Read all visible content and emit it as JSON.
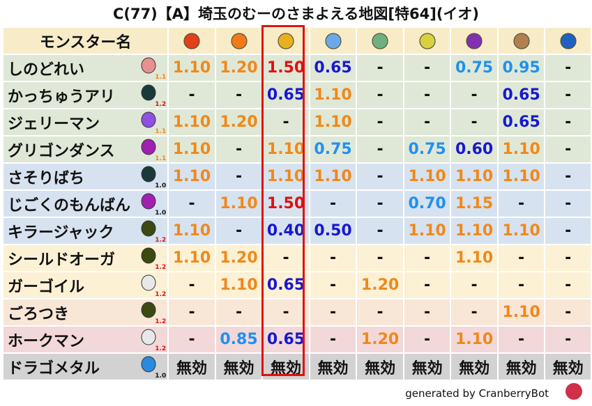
{
  "title": "C(77)【A】埼玉のむーのさまよえる地図[特64](イオ)",
  "header": {
    "name_label": "モンスター名",
    "elements": [
      {
        "icon": "mera-fire-icon",
        "color": "#e0401a"
      },
      {
        "icon": "gira-flame-icon",
        "color": "#f07a1a"
      },
      {
        "icon": "io-explosion-icon",
        "color": "#e8b020"
      },
      {
        "icon": "hyado-ice-icon",
        "color": "#6aa8e8"
      },
      {
        "icon": "bagi-wind-icon",
        "color": "#70b080"
      },
      {
        "icon": "dein-light-icon",
        "color": "#d8d040"
      },
      {
        "icon": "doruma-dark-icon",
        "color": "#8030b0"
      },
      {
        "icon": "jibaria-earth-icon",
        "color": "#b08050"
      },
      {
        "icon": "water-icon",
        "color": "#2060c0"
      }
    ]
  },
  "colors": {
    "high": "#f0881a",
    "max": "#e01010",
    "low": "#1818d0",
    "mid": "#2090f0",
    "none": "#111111"
  },
  "rows": [
    {
      "name": "しのどれい",
      "icon": "skull-icon",
      "icon_color": "#e89090",
      "level": "1.1",
      "level_color": "#f0881a",
      "bg": "#dfe8d6",
      "values": [
        "1.10",
        "1.20",
        "1.50",
        "0.65",
        "-",
        "-",
        "0.75",
        "0.95",
        "-"
      ]
    },
    {
      "name": "かっちゅうアリ",
      "icon": "ant-icon",
      "icon_color": "#1a3a3a",
      "level": "1.2",
      "level_color": "#e01010",
      "bg": "#dfe8d6",
      "values": [
        "-",
        "-",
        "0.65",
        "1.10",
        "-",
        "-",
        "-",
        "0.65",
        "-"
      ]
    },
    {
      "name": "ジェリーマン",
      "icon": "jelly-icon",
      "icon_color": "#9050e0",
      "level": "1.1",
      "level_color": "#f0881a",
      "bg": "#dfe8d6",
      "values": [
        "1.10",
        "1.20",
        "-",
        "1.10",
        "-",
        "-",
        "-",
        "0.65",
        "-"
      ]
    },
    {
      "name": "グリゴンダンス",
      "icon": "trident-icon",
      "icon_color": "#a020b0",
      "level": "1.1",
      "level_color": "#f0881a",
      "bg": "#dfe8d6",
      "values": [
        "1.10",
        "-",
        "1.10",
        "0.75",
        "-",
        "0.75",
        "0.60",
        "1.10",
        "-"
      ]
    },
    {
      "name": "さそりばち",
      "icon": "ant-icon",
      "icon_color": "#1a3a3a",
      "level": "1.0",
      "level_color": "#111111",
      "bg": "#d6e2ef",
      "values": [
        "1.10",
        "-",
        "1.10",
        "1.10",
        "-",
        "1.10",
        "1.10",
        "1.10",
        "-"
      ]
    },
    {
      "name": "じごくのもんばん",
      "icon": "trident-icon",
      "icon_color": "#a020b0",
      "level": "1.0",
      "level_color": "#111111",
      "bg": "#d6e2ef",
      "values": [
        "-",
        "1.10",
        "1.50",
        "-",
        "-",
        "0.70",
        "1.15",
        "-",
        "-"
      ]
    },
    {
      "name": "キラージャック",
      "icon": "hood-icon",
      "icon_color": "#3a4a10",
      "level": "1.2",
      "level_color": "#e01010",
      "bg": "#d6e2ef",
      "values": [
        "1.10",
        "-",
        "0.40",
        "0.50",
        "-",
        "1.10",
        "1.10",
        "1.10",
        "-"
      ]
    },
    {
      "name": "シールドオーガ",
      "icon": "hood-icon",
      "icon_color": "#3a4a10",
      "level": "1.2",
      "level_color": "#e01010",
      "bg": "#fcf1d4",
      "values": [
        "1.10",
        "1.20",
        "-",
        "-",
        "-",
        "-",
        "1.10",
        "-",
        "-"
      ]
    },
    {
      "name": "ガーゴイル",
      "icon": "wing-icon",
      "icon_color": "#e8e8e8",
      "level": "1.2",
      "level_color": "#e01010",
      "bg": "#fcf1d4",
      "values": [
        "-",
        "1.10",
        "0.65",
        "-",
        "1.20",
        "-",
        "-",
        "-",
        "-"
      ]
    },
    {
      "name": "ごろつき",
      "icon": "hood-icon",
      "icon_color": "#3a4a10",
      "level": "1.2",
      "level_color": "#e01010",
      "bg": "#f8e6d6",
      "values": [
        "-",
        "-",
        "-",
        "-",
        "-",
        "-",
        "-",
        "1.10",
        "-"
      ]
    },
    {
      "name": "ホークマン",
      "icon": "wing-icon",
      "icon_color": "#e8e8e8",
      "level": "1.2",
      "level_color": "#e01010",
      "bg": "#f2d8d8",
      "values": [
        "-",
        "0.85",
        "0.65",
        "-",
        "1.20",
        "-",
        "1.10",
        "-",
        "-"
      ]
    },
    {
      "name": "ドラゴメタル",
      "icon": "slime-icon",
      "icon_color": "#2a8ae0",
      "level": "1.0",
      "level_color": "#111111",
      "bg": "#d2d2d2",
      "values": [
        "無効",
        "無効",
        "無効",
        "無効",
        "無効",
        "無効",
        "無効",
        "無効",
        "無効"
      ]
    }
  ],
  "footer": {
    "text": "generated by CranberryBot",
    "icon": "cranberry-bot-icon"
  }
}
